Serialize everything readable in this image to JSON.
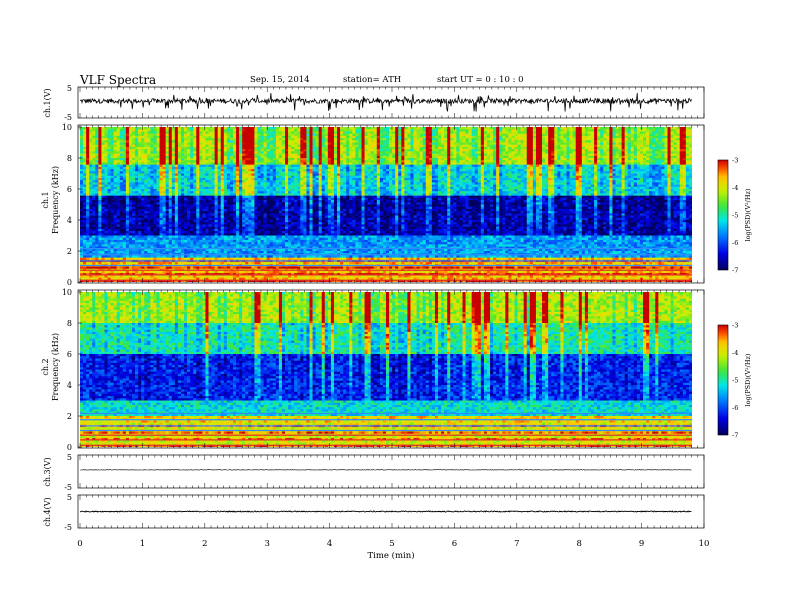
{
  "header": {
    "title": "VLF Spectra",
    "date": "Sep. 15, 2014",
    "station": "station= ATH",
    "start": "start UT = 0 : 10 : 0"
  },
  "chart_data": [
    {
      "type": "line",
      "panel": "ch1-waveform",
      "ylabel": "ch.1(V)",
      "ylim": [
        -5,
        5
      ],
      "yticks": [
        -5,
        5
      ],
      "x_range": [
        0,
        9.8
      ],
      "baseline_approx": 0.5,
      "amplitude_approx": 1.5,
      "color": "#000000"
    },
    {
      "type": "heatmap",
      "panel": "ch1-spectrogram",
      "ylabel": "Frequency (kHz)",
      "channel_label": "ch.1",
      "ylim": [
        0,
        10
      ],
      "yticks": [
        0,
        2,
        4,
        6,
        8,
        10
      ],
      "x_range": [
        0,
        9.8
      ],
      "colorbar": {
        "label": "log(PSD)(V²/Hz)",
        "ticks": [
          -7,
          -6,
          -5,
          -4,
          -3
        ],
        "range": [
          -7,
          -3
        ]
      },
      "description_bands": [
        {
          "freq_range": [
            0,
            1.5
          ],
          "level": -3.5
        },
        {
          "freq_range": [
            1.5,
            3
          ],
          "level": -5.6
        },
        {
          "freq_range": [
            3,
            5.5
          ],
          "level": -6.6
        },
        {
          "freq_range": [
            5.5,
            7.5
          ],
          "level": -5.2
        },
        {
          "freq_range": [
            7.5,
            10
          ],
          "level": -4.2
        }
      ]
    },
    {
      "type": "heatmap",
      "panel": "ch2-spectrogram",
      "ylabel": "Frequency (kHz)",
      "channel_label": "ch.2",
      "ylim": [
        0,
        10
      ],
      "yticks": [
        0,
        2,
        4,
        6,
        8,
        10
      ],
      "x_range": [
        0,
        9.8
      ],
      "colorbar": {
        "label": "log(PSD)(V²/Hz)",
        "ticks": [
          -7,
          -6,
          -5,
          -4,
          -3
        ],
        "range": [
          -7,
          -3
        ]
      },
      "description_bands": [
        {
          "freq_range": [
            0,
            2
          ],
          "level": -3.8
        },
        {
          "freq_range": [
            2,
            3
          ],
          "level": -5.2
        },
        {
          "freq_range": [
            3,
            6
          ],
          "level": -6.2
        },
        {
          "freq_range": [
            6,
            8
          ],
          "level": -5.0
        },
        {
          "freq_range": [
            8,
            10
          ],
          "level": -4.2
        }
      ]
    },
    {
      "type": "line",
      "panel": "ch3-waveform",
      "ylabel": "ch.3(V)",
      "ylim": [
        -5,
        5
      ],
      "yticks": [
        -5,
        5
      ],
      "x_range": [
        0,
        9.8
      ],
      "baseline_approx": 0.5,
      "amplitude_approx": 0.15,
      "color": "#000000"
    },
    {
      "type": "line",
      "panel": "ch4-waveform",
      "ylabel": "ch.4(V)",
      "ylim": [
        -5,
        5
      ],
      "yticks": [
        -5,
        5
      ],
      "x_range": [
        0,
        9.8
      ],
      "baseline_approx": 0,
      "amplitude_approx": 0.3,
      "color": "#000000"
    }
  ],
  "xaxis": {
    "label": "Time (min)",
    "range": [
      0,
      10
    ],
    "ticks": [
      0,
      1,
      2,
      3,
      4,
      5,
      6,
      7,
      8,
      9,
      10
    ]
  }
}
